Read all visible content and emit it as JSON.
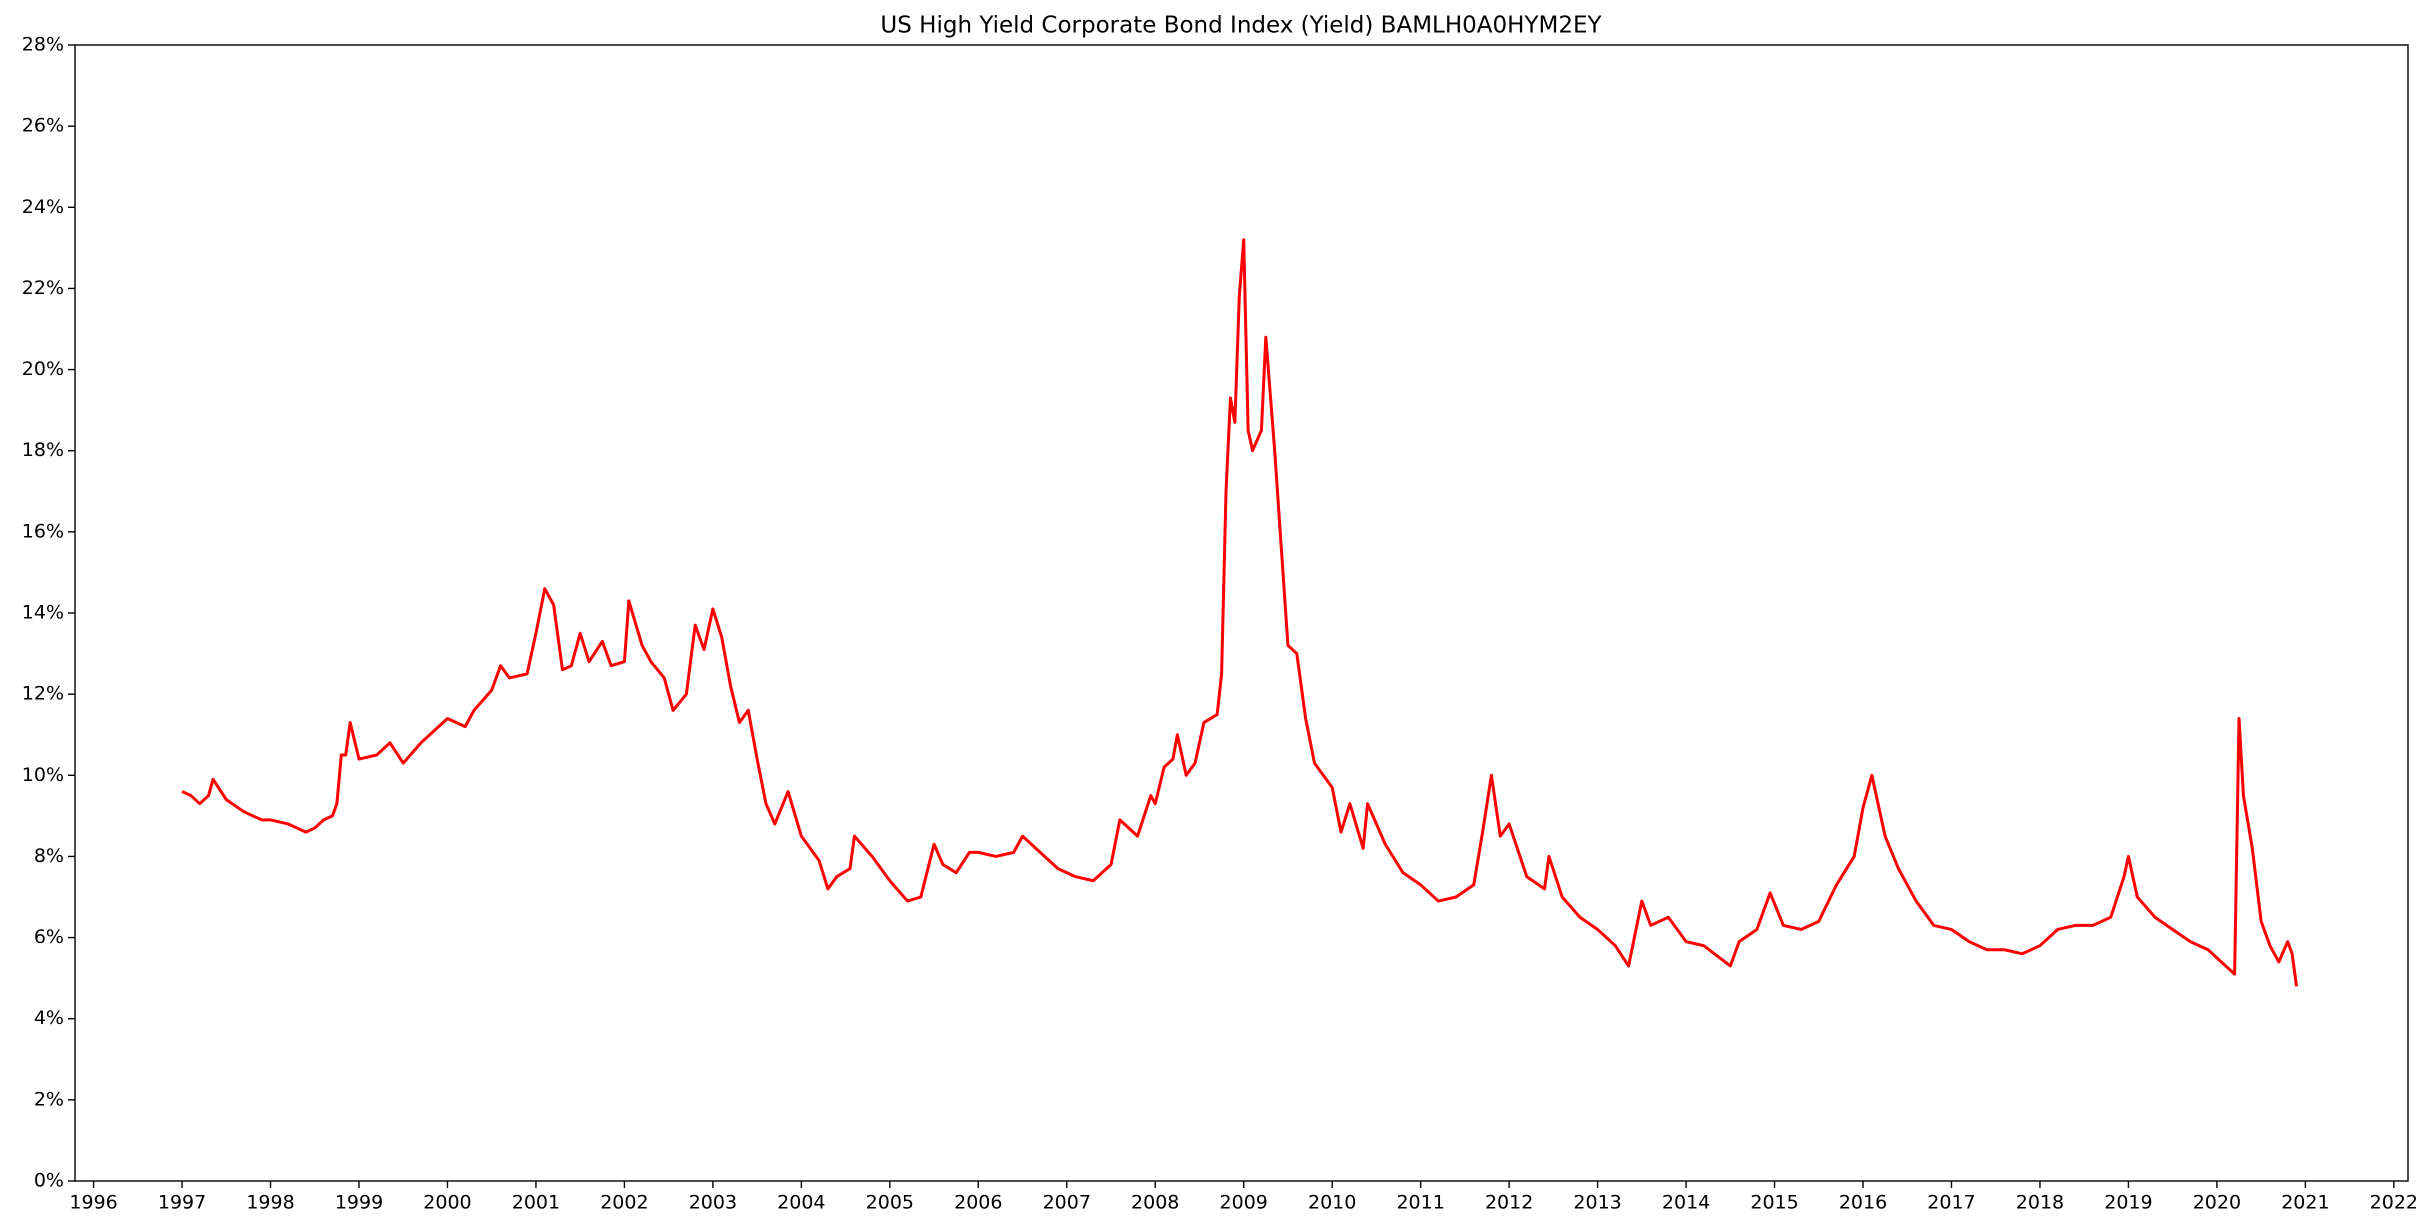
{
  "chart_data": {
    "type": "line",
    "title": "US High Yield Corporate Bond Index (Yield) BAMLH0A0HYM2EY",
    "x": [
      1997.0,
      1997.1,
      1997.2,
      1997.3,
      1997.35,
      1997.5,
      1997.7,
      1997.9,
      1998.0,
      1998.2,
      1998.4,
      1998.5,
      1998.6,
      1998.7,
      1998.75,
      1998.8,
      1998.85,
      1998.9,
      1999.0,
      1999.2,
      1999.35,
      1999.5,
      1999.7,
      1999.9,
      2000.0,
      2000.2,
      2000.3,
      2000.5,
      2000.6,
      2000.7,
      2000.9,
      2001.0,
      2001.1,
      2001.2,
      2001.3,
      2001.4,
      2001.5,
      2001.6,
      2001.75,
      2001.85,
      2002.0,
      2002.05,
      2002.2,
      2002.3,
      2002.45,
      2002.55,
      2002.7,
      2002.8,
      2002.9,
      2003.0,
      2003.1,
      2003.2,
      2003.3,
      2003.4,
      2003.5,
      2003.6,
      2003.7,
      2003.85,
      2004.0,
      2004.2,
      2004.3,
      2004.4,
      2004.55,
      2004.6,
      2004.8,
      2005.0,
      2005.2,
      2005.35,
      2005.5,
      2005.6,
      2005.75,
      2005.9,
      2006.0,
      2006.2,
      2006.4,
      2006.5,
      2006.7,
      2006.9,
      2007.1,
      2007.3,
      2007.5,
      2007.6,
      2007.8,
      2007.95,
      2008.0,
      2008.1,
      2008.2,
      2008.25,
      2008.35,
      2008.45,
      2008.55,
      2008.7,
      2008.75,
      2008.8,
      2008.85,
      2008.9,
      2008.95,
      2009.0,
      2009.05,
      2009.1,
      2009.2,
      2009.25,
      2009.35,
      2009.45,
      2009.5,
      2009.6,
      2009.7,
      2009.8,
      2010.0,
      2010.1,
      2010.2,
      2010.35,
      2010.4,
      2010.6,
      2010.8,
      2011.0,
      2011.2,
      2011.4,
      2011.6,
      2011.7,
      2011.8,
      2011.9,
      2012.0,
      2012.2,
      2012.4,
      2012.45,
      2012.6,
      2012.8,
      2013.0,
      2013.2,
      2013.35,
      2013.5,
      2013.6,
      2013.8,
      2014.0,
      2014.2,
      2014.5,
      2014.6,
      2014.8,
      2014.95,
      2015.1,
      2015.3,
      2015.5,
      2015.7,
      2015.9,
      2016.0,
      2016.1,
      2016.25,
      2016.4,
      2016.6,
      2016.8,
      2017.0,
      2017.2,
      2017.4,
      2017.6,
      2017.8,
      2018.0,
      2018.2,
      2018.4,
      2018.6,
      2018.8,
      2018.95,
      2019.0,
      2019.1,
      2019.3,
      2019.5,
      2019.7,
      2019.9,
      2020.1,
      2020.2,
      2020.25,
      2020.3,
      2020.4,
      2020.5,
      2020.6,
      2020.7,
      2020.8,
      2020.85,
      2020.9
    ],
    "series": [
      {
        "color": "#ff0000",
        "values": [
          9.6,
          9.5,
          9.3,
          9.5,
          9.9,
          9.4,
          9.1,
          8.9,
          8.9,
          8.8,
          8.6,
          8.7,
          8.9,
          9.0,
          9.3,
          10.5,
          10.5,
          11.3,
          10.4,
          10.5,
          10.8,
          10.3,
          10.8,
          11.2,
          11.4,
          11.2,
          11.6,
          12.1,
          12.7,
          12.4,
          12.5,
          13.5,
          14.6,
          14.2,
          12.6,
          12.7,
          13.5,
          12.8,
          13.3,
          12.7,
          12.8,
          14.3,
          13.2,
          12.8,
          12.4,
          11.6,
          12.0,
          13.7,
          13.1,
          14.1,
          13.4,
          12.2,
          11.3,
          11.6,
          10.4,
          9.3,
          8.8,
          9.6,
          8.5,
          7.9,
          7.2,
          7.5,
          7.7,
          8.5,
          8.0,
          7.4,
          6.9,
          7.0,
          8.3,
          7.8,
          7.6,
          8.1,
          8.1,
          8.0,
          8.1,
          8.5,
          8.1,
          7.7,
          7.5,
          7.4,
          7.8,
          8.9,
          8.5,
          9.5,
          9.3,
          10.2,
          10.4,
          11.0,
          10.0,
          10.3,
          11.3,
          11.5,
          12.5,
          17.0,
          19.3,
          18.7,
          21.8,
          23.2,
          18.5,
          18.0,
          18.5,
          20.8,
          18.0,
          14.8,
          13.2,
          13.0,
          11.4,
          10.3,
          9.7,
          8.6,
          9.3,
          8.2,
          9.3,
          8.3,
          7.6,
          7.3,
          6.9,
          7.0,
          7.3,
          8.6,
          10.0,
          8.5,
          8.8,
          7.5,
          7.2,
          8.0,
          7.0,
          6.5,
          6.2,
          5.8,
          5.3,
          6.9,
          6.3,
          6.5,
          5.9,
          5.8,
          5.3,
          5.9,
          6.2,
          7.1,
          6.3,
          6.2,
          6.4,
          7.3,
          8.0,
          9.2,
          10.0,
          8.5,
          7.7,
          6.9,
          6.3,
          6.2,
          5.9,
          5.7,
          5.7,
          5.6,
          5.8,
          6.2,
          6.3,
          6.3,
          6.5,
          7.5,
          8.0,
          7.0,
          6.5,
          6.2,
          5.9,
          5.7,
          5.3,
          5.1,
          11.4,
          9.5,
          8.2,
          6.4,
          5.8,
          5.4,
          5.9,
          5.6,
          4.8
        ]
      }
    ],
    "xlim": [
      1995.79,
      2022.16
    ],
    "xticks": [
      1996,
      1997,
      1998,
      1999,
      2000,
      2001,
      2002,
      2003,
      2004,
      2005,
      2006,
      2007,
      2008,
      2009,
      2010,
      2011,
      2012,
      2013,
      2014,
      2015,
      2016,
      2017,
      2018,
      2019,
      2020,
      2021,
      2022
    ],
    "ylim": [
      0,
      28
    ],
    "yticks": [
      {
        "value": 0,
        "label": "0%"
      },
      {
        "value": 2,
        "label": "2%"
      },
      {
        "value": 4,
        "label": "4%"
      },
      {
        "value": 6,
        "label": "6%"
      },
      {
        "value": 8,
        "label": "8%"
      },
      {
        "value": 10,
        "label": "10%"
      },
      {
        "value": 12,
        "label": "12%"
      },
      {
        "value": 14,
        "label": "14%"
      },
      {
        "value": 16,
        "label": "16%"
      },
      {
        "value": 18,
        "label": "18%"
      },
      {
        "value": 20,
        "label": "20%"
      },
      {
        "value": 22,
        "label": "22%"
      },
      {
        "value": 24,
        "label": "24%"
      },
      {
        "value": 26,
        "label": "26%"
      },
      {
        "value": 28,
        "label": "28%"
      }
    ],
    "grid": false
  }
}
